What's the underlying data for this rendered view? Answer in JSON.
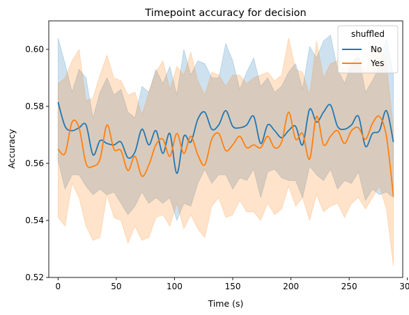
{
  "chart_data": {
    "type": "line",
    "title": "Timepoint accuracy for decision",
    "xlabel": "Time (s)",
    "ylabel": "Accuracy",
    "xlim": [
      -8,
      296
    ],
    "ylim": [
      0.52,
      0.61
    ],
    "xticks": [
      0,
      50,
      100,
      150,
      200,
      250,
      300
    ],
    "xtick_labels": [
      "0",
      "50",
      "100",
      "150",
      "200",
      "250",
      "300"
    ],
    "yticks": [
      0.52,
      0.54,
      0.56,
      0.58,
      0.6
    ],
    "ytick_labels": [
      "0.52",
      "0.54",
      "0.56",
      "0.58",
      "0.60"
    ],
    "grid": false,
    "legend": {
      "title": "shuffled",
      "position": "top-right"
    },
    "x": [
      0,
      6,
      12,
      18,
      24,
      30,
      36,
      42,
      48,
      54,
      60,
      66,
      72,
      78,
      84,
      90,
      96,
      102,
      108,
      114,
      120,
      126,
      132,
      138,
      144,
      150,
      156,
      162,
      168,
      174,
      180,
      186,
      192,
      198,
      204,
      210,
      216,
      222,
      228,
      234,
      240,
      246,
      252,
      258,
      264,
      270,
      276,
      282,
      288
    ],
    "series": [
      {
        "name": "No",
        "color": "#1f77b4",
        "band_color": "#1f77b4",
        "values": [
          0.5815,
          0.573,
          0.5715,
          0.5725,
          0.5735,
          0.563,
          0.568,
          0.567,
          0.5665,
          0.5675,
          0.562,
          0.564,
          0.572,
          0.5665,
          0.5715,
          0.5635,
          0.5705,
          0.5565,
          0.5695,
          0.5675,
          0.5755,
          0.578,
          0.572,
          0.5735,
          0.5785,
          0.573,
          0.5725,
          0.5735,
          0.5765,
          0.567,
          0.5735,
          0.5715,
          0.569,
          0.5715,
          0.573,
          0.5665,
          0.579,
          0.5745,
          0.578,
          0.5805,
          0.573,
          0.572,
          0.5735,
          0.5765,
          0.566,
          0.5705,
          0.5715,
          0.5785,
          0.5675
        ],
        "upper": [
          0.604,
          0.595,
          0.585,
          0.593,
          0.59,
          0.576,
          0.585,
          0.59,
          0.584,
          0.586,
          0.578,
          0.576,
          0.587,
          0.585,
          0.593,
          0.588,
          0.594,
          0.584,
          0.6,
          0.591,
          0.596,
          0.595,
          0.59,
          0.59,
          0.602,
          0.596,
          0.586,
          0.592,
          0.597,
          0.587,
          0.59,
          0.585,
          0.587,
          0.592,
          0.595,
          0.586,
          0.601,
          0.597,
          0.603,
          0.605,
          0.593,
          0.588,
          0.595,
          0.598,
          0.585,
          0.589,
          0.594,
          0.604,
          0.591
        ],
        "lower": [
          0.561,
          0.551,
          0.556,
          0.556,
          0.552,
          0.549,
          0.551,
          0.549,
          0.55,
          0.546,
          0.542,
          0.545,
          0.55,
          0.546,
          0.548,
          0.546,
          0.548,
          0.54,
          0.546,
          0.545,
          0.553,
          0.558,
          0.553,
          0.556,
          0.556,
          0.551,
          0.555,
          0.554,
          0.558,
          0.548,
          0.557,
          0.558,
          0.555,
          0.554,
          0.554,
          0.548,
          0.559,
          0.556,
          0.554,
          0.558,
          0.551,
          0.554,
          0.553,
          0.557,
          0.547,
          0.551,
          0.549,
          0.55,
          0.548
        ]
      },
      {
        "name": "Yes",
        "color": "#ff7f0e",
        "band_color": "#ff7f0e",
        "values": [
          0.565,
          0.5635,
          0.5745,
          0.5725,
          0.56,
          0.559,
          0.5615,
          0.5735,
          0.565,
          0.5645,
          0.5575,
          0.5625,
          0.5555,
          0.5595,
          0.5665,
          0.5685,
          0.5625,
          0.5705,
          0.5635,
          0.5695,
          0.563,
          0.5595,
          0.5685,
          0.5705,
          0.5645,
          0.5665,
          0.5695,
          0.5655,
          0.5665,
          0.5655,
          0.5695,
          0.5655,
          0.5675,
          0.578,
          0.5685,
          0.5705,
          0.5615,
          0.5765,
          0.5665,
          0.5695,
          0.5715,
          0.567,
          0.5715,
          0.5725,
          0.5685,
          0.574,
          0.5765,
          0.5695,
          0.5485
        ],
        "upper": [
          0.588,
          0.59,
          0.596,
          0.6,
          0.582,
          0.583,
          0.591,
          0.598,
          0.59,
          0.589,
          0.584,
          0.585,
          0.577,
          0.585,
          0.592,
          0.596,
          0.586,
          0.594,
          0.591,
          0.599,
          0.589,
          0.584,
          0.592,
          0.591,
          0.587,
          0.591,
          0.591,
          0.588,
          0.59,
          0.591,
          0.592,
          0.589,
          0.591,
          0.604,
          0.593,
          0.592,
          0.584,
          0.603,
          0.59,
          0.595,
          0.596,
          0.593,
          0.596,
          0.597,
          0.592,
          0.6,
          0.601,
          0.595,
          0.572
        ],
        "lower": [
          0.541,
          0.538,
          0.553,
          0.548,
          0.538,
          0.533,
          0.534,
          0.549,
          0.541,
          0.54,
          0.532,
          0.538,
          0.533,
          0.534,
          0.541,
          0.542,
          0.538,
          0.546,
          0.537,
          0.542,
          0.537,
          0.534,
          0.545,
          0.548,
          0.541,
          0.542,
          0.547,
          0.543,
          0.543,
          0.54,
          0.546,
          0.542,
          0.544,
          0.552,
          0.545,
          0.548,
          0.54,
          0.549,
          0.543,
          0.545,
          0.546,
          0.541,
          0.546,
          0.548,
          0.544,
          0.548,
          0.552,
          0.544,
          0.524
        ]
      }
    ]
  }
}
